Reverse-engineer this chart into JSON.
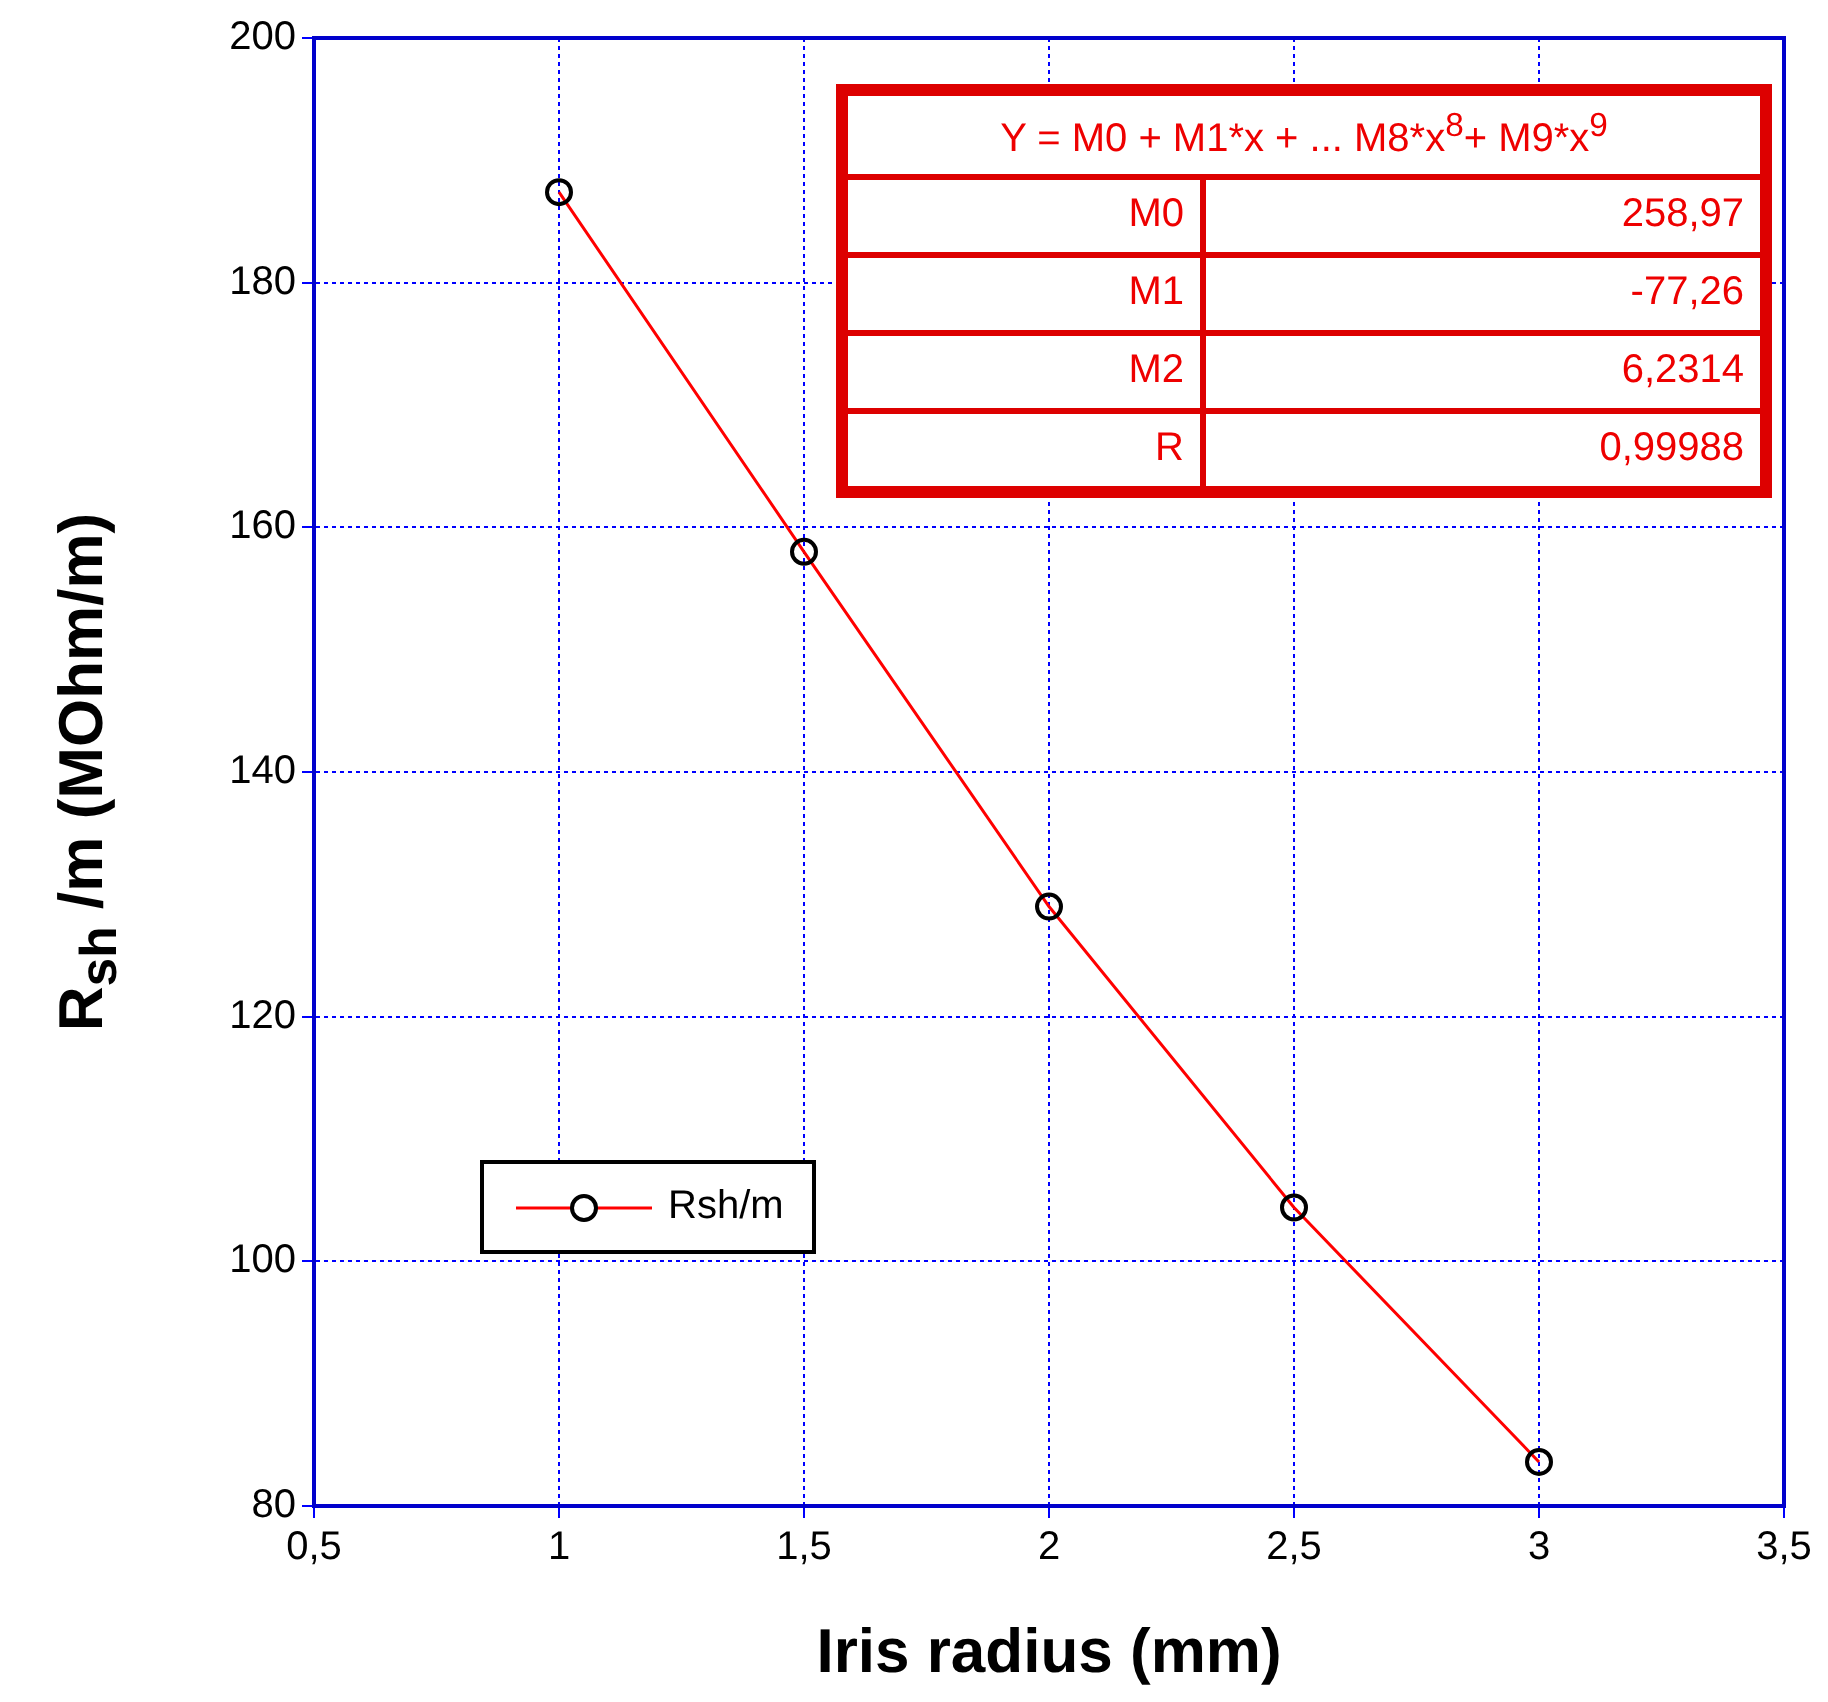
{
  "chart_data": {
    "type": "line",
    "xlabel": "Iris radius (mm)",
    "ylabel": "R$_{sh}$ /m (MOhm/m)",
    "x": [
      1,
      1.5,
      2,
      2.5,
      3
    ],
    "series": [
      {
        "name": "Rsh/m",
        "color": "#ff0000",
        "values": [
          187.4,
          158.0,
          129.0,
          104.4,
          83.6
        ]
      }
    ],
    "xlim": [
      0.5,
      3.5
    ],
    "xticks": [
      {
        "value": 0.5,
        "label": "0,5"
      },
      1,
      {
        "value": 1.5,
        "label": "1,5"
      },
      2,
      {
        "value": 2.5,
        "label": "2,5"
      },
      3,
      {
        "value": 3.5,
        "label": "3,5"
      }
    ],
    "ylim": [
      80,
      200
    ],
    "yticks": [
      80,
      100,
      120,
      140,
      160,
      180,
      200
    ],
    "grid": true,
    "legend": "left",
    "marker": "circle",
    "line_style": "solid",
    "annotations": [
      "Y = M0 + M1*x + ... M8*x$^{8}$+ M9*x$^{9}$",
      "M0",
      "258,97",
      "M1",
      "-77,26",
      "M2",
      "6,2314",
      "R",
      "0,99988"
    ]
  }
}
